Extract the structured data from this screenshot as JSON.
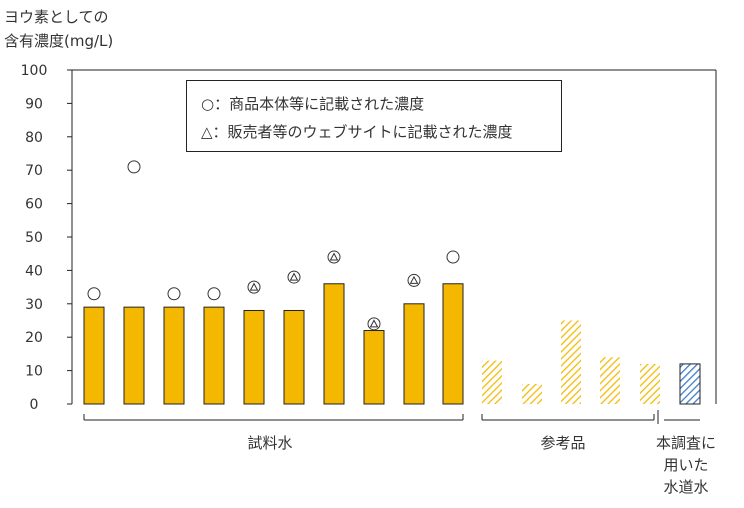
{
  "chart_data": {
    "type": "bar",
    "ylabel_lines": [
      "ヨウ素としての",
      "含有濃度(mg/L)"
    ],
    "yticks": [
      0,
      10,
      20,
      30,
      40,
      50,
      60,
      70,
      80,
      90,
      100
    ],
    "ylim": [
      0,
      100
    ],
    "legend": [
      "○：商品本体等に記載された濃度",
      "△：販売者等のウェブサイトに記載された濃度"
    ],
    "groups": [
      {
        "label": "試料水",
        "label_lines": [
          "試料水"
        ]
      },
      {
        "label": "参考品",
        "label_lines": [
          "参考品"
        ]
      },
      {
        "label": "本調査に用いた水道水",
        "label_lines": [
          "本調査に",
          "用いた",
          "水道水"
        ]
      }
    ],
    "bars": [
      {
        "group": 0,
        "value": 29,
        "pattern": "solid",
        "marker": "circle",
        "marker_value": 33
      },
      {
        "group": 0,
        "value": 29,
        "pattern": "solid",
        "marker": "",
        "marker_value": null
      },
      {
        "group": 0,
        "value": 29,
        "pattern": "solid",
        "marker": "circle",
        "marker_value": 33
      },
      {
        "group": 0,
        "value": 29,
        "pattern": "solid",
        "marker": "circle",
        "marker_value": 33
      },
      {
        "group": 0,
        "value": 28,
        "pattern": "solid",
        "marker": "both",
        "marker_value": 35
      },
      {
        "group": 0,
        "value": 28,
        "pattern": "solid",
        "marker": "both",
        "marker_value": 38
      },
      {
        "group": 0,
        "value": 36,
        "pattern": "solid",
        "marker": "both",
        "marker_value": 44
      },
      {
        "group": 0,
        "value": 22,
        "pattern": "solid",
        "marker": "both",
        "marker_value": 24
      },
      {
        "group": 0,
        "value": 30,
        "pattern": "solid",
        "marker": "both",
        "marker_value": 37
      },
      {
        "group": 0,
        "value": 36,
        "pattern": "solid",
        "marker": "circle",
        "marker_value": 44
      },
      {
        "group": 1,
        "value": 13,
        "pattern": "hatched",
        "marker": "",
        "marker_value": null
      },
      {
        "group": 1,
        "value": 6,
        "pattern": "hatched",
        "marker": "",
        "marker_value": null
      },
      {
        "group": 1,
        "value": 25,
        "pattern": "hatched",
        "marker": "",
        "marker_value": null
      },
      {
        "group": 1,
        "value": 14,
        "pattern": "hatched",
        "marker": "",
        "marker_value": null
      },
      {
        "group": 1,
        "value": 12,
        "pattern": "hatched",
        "marker": "",
        "marker_value": null
      },
      {
        "group": 2,
        "value": 12,
        "pattern": "blue-hatched",
        "marker": "",
        "marker_value": null
      }
    ],
    "outlier": {
      "bar_index": 1,
      "marker": "circle",
      "value": 71
    },
    "colors": {
      "solid": "#f5b800",
      "hatch": "#f5b800",
      "blue_hatch": "#3a78c9",
      "outline": "#222222"
    }
  }
}
